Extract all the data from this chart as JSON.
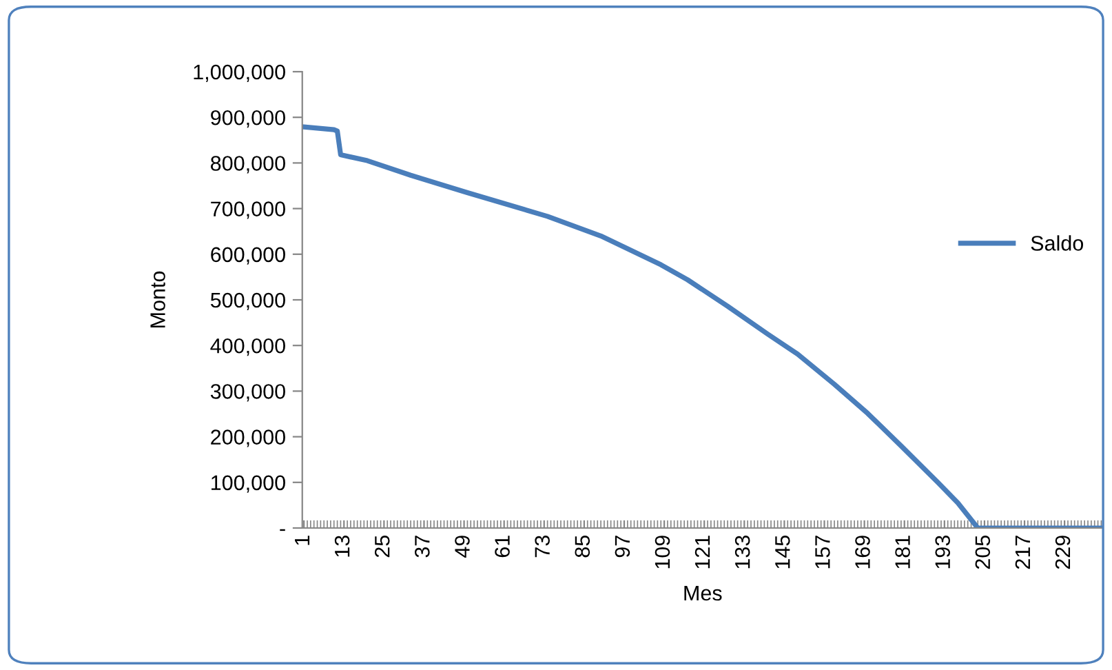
{
  "chart_data": {
    "type": "line",
    "xlabel": "Mes",
    "ylabel": "Monto",
    "xlim": [
      0.5,
      240.5
    ],
    "xticks": [
      1,
      13,
      25,
      37,
      49,
      61,
      73,
      85,
      97,
      109,
      121,
      133,
      145,
      157,
      169,
      181,
      193,
      205,
      217,
      229
    ],
    "ylim": [
      0,
      1000000
    ],
    "yticks": [
      {
        "value": 0,
        "label": "-"
      },
      {
        "value": 100000,
        "label": "100,000"
      },
      {
        "value": 200000,
        "label": "200,000"
      },
      {
        "value": 300000,
        "label": "300,000"
      },
      {
        "value": 400000,
        "label": "400,000"
      },
      {
        "value": 500000,
        "label": "500,000"
      },
      {
        "value": 600000,
        "label": "600,000"
      },
      {
        "value": 700000,
        "label": "700,000"
      },
      {
        "value": 800000,
        "label": "800,000"
      },
      {
        "value": 900000,
        "label": "900,000"
      },
      {
        "value": 1000000,
        "label": "1,000,000"
      }
    ],
    "grid": false,
    "legend": "right",
    "marker": "none",
    "line_style": "solid",
    "series": [
      {
        "name": "Saldo",
        "color": "#4a7ebb",
        "x": [
          1,
          10,
          11,
          12,
          20,
          33,
          50,
          74,
          90,
          108,
          116,
          128,
          140,
          149,
          160,
          170,
          180,
          191,
          197,
          203,
          240
        ],
        "values": [
          879000,
          873000,
          870000,
          818000,
          805000,
          773000,
          735000,
          683000,
          640000,
          577000,
          544000,
          486000,
          425000,
          381000,
          315000,
          251000,
          180000,
          100000,
          55000,
          0,
          0
        ]
      }
    ]
  }
}
